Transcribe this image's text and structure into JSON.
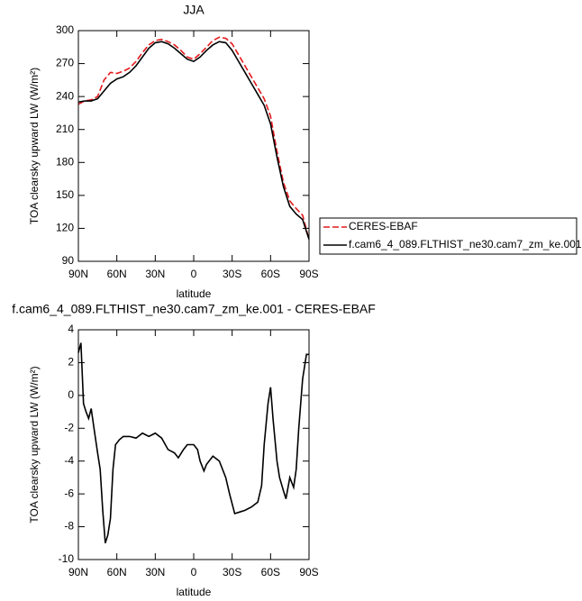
{
  "chart_data": [
    {
      "type": "line",
      "title": "JJA",
      "xlabel": "latitude",
      "ylabel": "TOA clearsky upward LW (W/m²)",
      "x": [
        90,
        85,
        80,
        75,
        70,
        65,
        60,
        55,
        50,
        45,
        40,
        35,
        30,
        25,
        20,
        15,
        10,
        5,
        0,
        -5,
        -10,
        -15,
        -20,
        -25,
        -30,
        -35,
        -40,
        -45,
        -50,
        -55,
        -60,
        -65,
        -70,
        -75,
        -80,
        -85,
        -90
      ],
      "series": [
        {
          "name": "CERES-EBAF",
          "color": "#e41a1c",
          "dash": "dashed",
          "values": [
            233,
            236,
            237,
            240,
            255,
            262,
            261,
            263,
            266,
            272,
            280,
            287,
            291,
            292,
            290,
            287,
            282,
            276,
            274,
            279,
            285,
            291,
            294,
            293,
            288,
            278,
            268,
            258,
            248,
            238,
            222,
            190,
            162,
            145,
            138,
            132,
            110
          ]
        },
        {
          "name": "f.cam6_4_089.FLTHIST_ne30.cam7_zm_ke.001",
          "color": "#000000",
          "dash": "solid",
          "values": [
            235,
            236,
            236,
            238,
            245,
            252,
            256,
            258,
            262,
            268,
            276,
            284,
            289,
            290,
            288,
            284,
            279,
            274,
            272,
            276,
            282,
            287,
            290,
            289,
            282,
            272,
            262,
            252,
            242,
            232,
            215,
            185,
            158,
            140,
            133,
            128,
            110
          ]
        }
      ],
      "xlim": [
        90,
        -90
      ],
      "xticks": [
        {
          "value": 90,
          "label": "90N"
        },
        {
          "value": 60,
          "label": "60N"
        },
        {
          "value": 30,
          "label": "30N"
        },
        0,
        {
          "value": -30,
          "label": "30S"
        },
        {
          "value": -60,
          "label": "60S"
        },
        {
          "value": -90,
          "label": "90S"
        }
      ],
      "ylim": [
        90,
        300
      ],
      "yticks": [
        90,
        120,
        150,
        180,
        210,
        240,
        270,
        300
      ],
      "legend": "right"
    },
    {
      "type": "line",
      "title": "f.cam6_4_089.FLTHIST_ne30.cam7_zm_ke.001 - CERES-EBAF",
      "xlabel": "latitude",
      "ylabel": "TOA clearsky upward LW (W/m²)",
      "x": [
        90,
        88,
        86,
        84,
        82,
        80,
        78,
        75,
        73,
        71,
        69,
        67,
        65,
        63,
        61,
        58,
        55,
        50,
        45,
        40,
        35,
        30,
        25,
        20,
        15,
        12,
        8,
        5,
        0,
        -3,
        -5,
        -8,
        -10,
        -15,
        -20,
        -25,
        -28,
        -32,
        -36,
        -40,
        -45,
        -50,
        -53,
        -55,
        -58,
        -60,
        -62,
        -65,
        -67,
        -70,
        -72,
        -75,
        -78,
        -80,
        -82,
        -85,
        -88,
        -90
      ],
      "series": [
        {
          "color": "#000000",
          "values": [
            2.6,
            3.2,
            -0.5,
            -1.0,
            -1.4,
            -0.8,
            -1.9,
            -3.5,
            -4.5,
            -7.0,
            -9.0,
            -8.5,
            -7.5,
            -4.5,
            -3.0,
            -2.7,
            -2.5,
            -2.5,
            -2.6,
            -2.3,
            -2.5,
            -2.3,
            -2.6,
            -3.3,
            -3.5,
            -3.8,
            -3.3,
            -3.0,
            -3.0,
            -3.3,
            -4.0,
            -4.6,
            -4.2,
            -3.7,
            -4.0,
            -5.0,
            -6.0,
            -7.2,
            -7.1,
            -7.0,
            -6.8,
            -6.5,
            -5.5,
            -3.0,
            -0.5,
            0.5,
            -1.5,
            -4.0,
            -5.0,
            -5.8,
            -6.3,
            -5.0,
            -5.6,
            -4.5,
            -2.0,
            1.0,
            2.5,
            2.5
          ]
        }
      ],
      "xlim": [
        90,
        -90
      ],
      "xticks": [
        {
          "value": 90,
          "label": "90N"
        },
        {
          "value": 60,
          "label": "60N"
        },
        {
          "value": 30,
          "label": "30N"
        },
        0,
        {
          "value": -30,
          "label": "30S"
        },
        {
          "value": -60,
          "label": "60S"
        },
        {
          "value": -90,
          "label": "90S"
        }
      ],
      "ylim": [
        -10,
        4
      ],
      "yticks": [
        -10,
        -8,
        -6,
        -4,
        -2,
        0,
        2,
        4
      ]
    }
  ]
}
